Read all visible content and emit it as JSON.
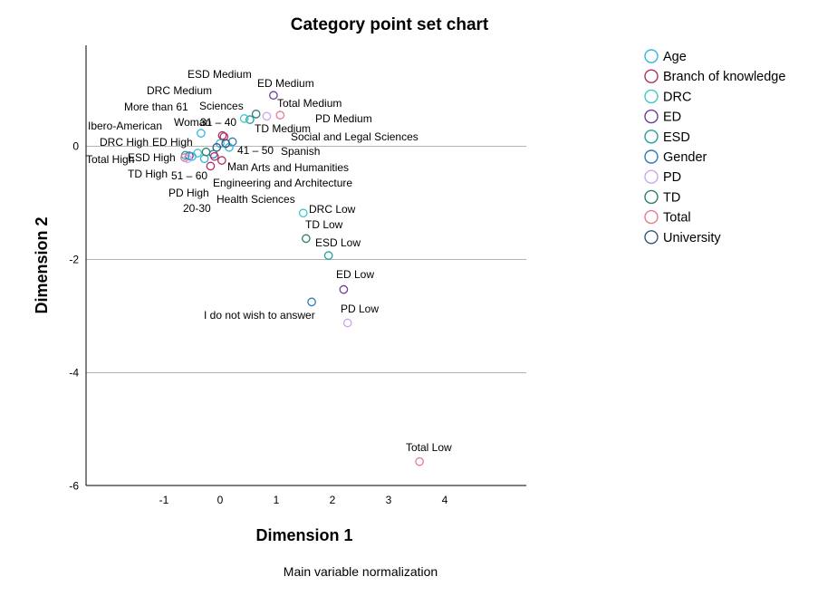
{
  "chart_data": {
    "type": "scatter",
    "title": "Category point set chart",
    "xlabel": "Dimension 1",
    "ylabel": "Dimension 2",
    "footnote": "Main variable normalization",
    "xlim": [
      -2.2,
      5.4
    ],
    "ylim": [
      -6.0,
      3.6
    ],
    "x_ticks": [
      -1,
      0,
      1,
      2,
      3,
      4
    ],
    "y_ticks": [
      0,
      -2,
      -4,
      -6
    ],
    "y_gridlines": [
      0,
      -2,
      -4
    ],
    "legend_position": "top-right",
    "legend": [
      {
        "name": "Age",
        "color": "#33b5e5"
      },
      {
        "name": "Branch of knowledge",
        "color": "#b03060"
      },
      {
        "name": "DRC",
        "color": "#3cc8c8"
      },
      {
        "name": "ED",
        "color": "#6a3d9a"
      },
      {
        "name": "ESD",
        "color": "#20a0a0"
      },
      {
        "name": "Gender",
        "color": "#2b7bba"
      },
      {
        "name": "PD",
        "color": "#c8a8e8"
      },
      {
        "name": "TD",
        "color": "#2e7d6e"
      },
      {
        "name": "Total",
        "color": "#e87a90"
      },
      {
        "name": "University",
        "color": "#34567a"
      }
    ],
    "points": [
      {
        "label": "Total Low",
        "series": "Total",
        "x": 3.55,
        "y": -5.57
      },
      {
        "label": "ED Low",
        "series": "ED",
        "x": 2.2,
        "y": -2.53
      },
      {
        "label": "PD Low",
        "series": "PD",
        "x": 2.27,
        "y": -3.12
      },
      {
        "label": "I do not wish to answer",
        "series": "Gender",
        "x": 1.63,
        "y": -2.75
      },
      {
        "label": "ESD Low",
        "series": "ESD",
        "x": 1.93,
        "y": -1.93
      },
      {
        "label": "TD Low",
        "series": "TD",
        "x": 1.53,
        "y": -1.63
      },
      {
        "label": "DRC Low",
        "series": "DRC",
        "x": 1.48,
        "y": -1.18
      },
      {
        "label": "ED Medium",
        "series": "ED",
        "x": 0.95,
        "y": 0.9
      },
      {
        "label": "Total Medium",
        "series": "Total",
        "x": 1.07,
        "y": 0.55
      },
      {
        "label": "PD Medium",
        "series": "PD",
        "x": 0.83,
        "y": 0.53
      },
      {
        "label": "TD Medium",
        "series": "TD",
        "x": 0.64,
        "y": 0.57
      },
      {
        "label": "ESD Medium",
        "series": "ESD",
        "x": 0.53,
        "y": 0.47
      },
      {
        "label": "DRC Medium",
        "series": "DRC",
        "x": 0.43,
        "y": 0.49
      },
      {
        "label": "Sciences",
        "series": "Branch of knowledge",
        "x": 0.07,
        "y": 0.17
      },
      {
        "label": "More than 61",
        "series": "Age",
        "x": -0.34,
        "y": 0.23
      },
      {
        "label": "31 – 40",
        "series": "Age",
        "x": 0.0,
        "y": 0.05
      },
      {
        "label": "Woman",
        "series": "Gender",
        "x": 0.22,
        "y": 0.08
      },
      {
        "label": "41 – 50",
        "series": "Age",
        "x": 0.16,
        "y": -0.02
      },
      {
        "label": "Ibero-American",
        "series": "University",
        "x": 0.1,
        "y": 0.05
      },
      {
        "label": "Spanish",
        "series": "University",
        "x": -0.06,
        "y": -0.02
      },
      {
        "label": "Social and Legal Sciences",
        "series": "Branch of knowledge",
        "x": 0.04,
        "y": 0.19
      },
      {
        "label": "Man",
        "series": "Gender",
        "x": -0.12,
        "y": -0.14
      },
      {
        "label": "Arts and Humanities",
        "series": "Branch of knowledge",
        "x": 0.03,
        "y": -0.25
      },
      {
        "label": "Engineering and Architecture",
        "series": "Branch of knowledge",
        "x": -0.1,
        "y": -0.18
      },
      {
        "label": "51 – 60",
        "series": "Age",
        "x": -0.28,
        "y": -0.22
      },
      {
        "label": "Health Sciences",
        "series": "Branch of knowledge",
        "x": -0.17,
        "y": -0.35
      },
      {
        "label": "DRC High",
        "series": "DRC",
        "x": -0.4,
        "y": -0.12
      },
      {
        "label": "ED High",
        "series": "ED",
        "x": -0.55,
        "y": -0.17
      },
      {
        "label": "ESD High",
        "series": "ESD",
        "x": -0.62,
        "y": -0.16
      },
      {
        "label": "Total High",
        "series": "Total",
        "x": -0.63,
        "y": -0.2
      },
      {
        "label": "TD High",
        "series": "TD",
        "x": -0.25,
        "y": -0.1
      },
      {
        "label": "PD High",
        "series": "PD",
        "x": -0.58,
        "y": -0.22
      },
      {
        "label": "20-30",
        "series": "Age",
        "x": -0.5,
        "y": -0.18
      }
    ]
  }
}
